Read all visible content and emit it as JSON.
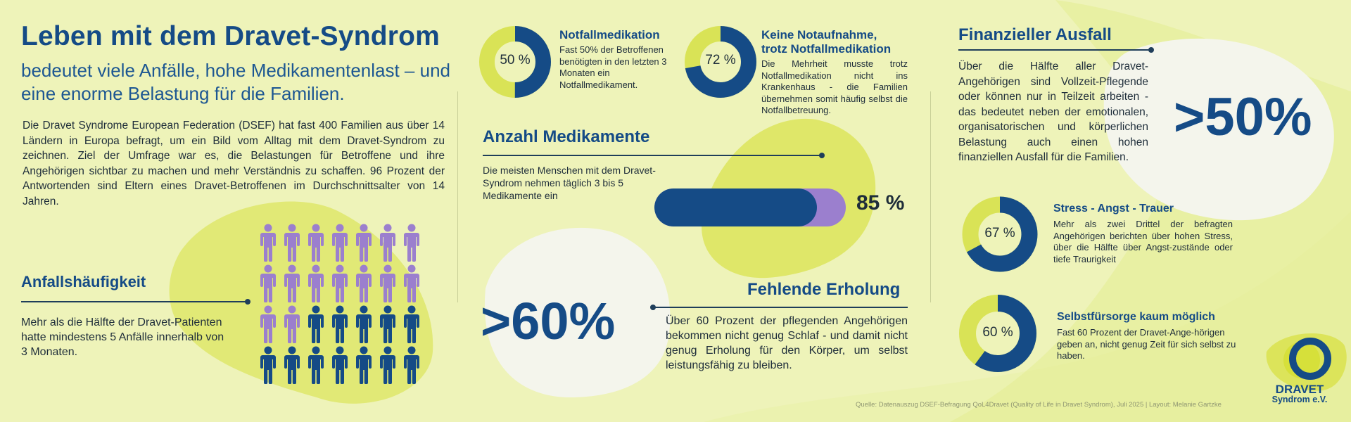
{
  "header": {
    "title": "Leben mit dem Dravet-Syndrom",
    "subtitle": "bedeutet viele Anfälle, hohe Medikamentenlast – und eine enorme Belastung für die Familien.",
    "intro": "Die Dravet Syndrome European Federation (DSEF) hat fast 400 Familien aus über 14 Ländern in Europa befragt, um ein Bild vom Alltag mit dem Dravet-Syndrom zu zeichnen. Ziel der Umfrage war es, die Belastungen für Betroffene und ihre Angehörigen sichtbar zu machen und mehr Verständnis zu schaffen. 96 Prozent der Antwortenden sind Eltern eines Dravet-Betroffenen im Durchschnittsalter von 14 Jahren."
  },
  "seizures": {
    "heading": "Anfallshäufigkeit",
    "text": "Mehr als die Hälfte der Dravet-Patienten hatte mindestens 5 Anfälle innerhalb von 3 Monaten.",
    "pictogram": {
      "total": 28,
      "highlighted": 16,
      "highlight_color": "#9b7fce",
      "base_color": "#154b86"
    }
  },
  "emergency_medication": {
    "percent": 50,
    "label": "50 %",
    "heading": "Notfallmedikation",
    "text": "Fast 50% der Betroffenen benötigten in den letzten 3 Monaten ein Notfallmedikament."
  },
  "no_emergency_admission": {
    "percent": 72,
    "label": "72 %",
    "heading_line1": "Keine Notaufnahme,",
    "heading_line2": "trotz Notfallmedikation",
    "text": "Die Mehrheit musste trotz Notfallmedikation nicht ins Krankenhaus - die Familien übernehmen somit häufig selbst die Notfallbetreuung."
  },
  "medications": {
    "heading": "Anzahl Medikamente",
    "text": "Die meisten Menschen mit dem Dravet-Syndrom nehmen täglich 3 bis 5 Medikamente ein",
    "percent": 85,
    "label": "85 %"
  },
  "recovery": {
    "big": ">60%",
    "heading": "Fehlende Erholung",
    "text": "Über 60 Prozent der pflegenden Angehörigen bekommen nicht genug Schlaf - und damit nicht genug Erholung für den Körper, um selbst leistungsfähig zu bleiben."
  },
  "financial": {
    "heading": "Finanzieller Ausfall",
    "text": "Über die Hälfte aller Dravet-Angehörigen sind Vollzeit-Pflegende oder können nur in Teilzeit arbeiten - das bedeutet neben der emotionalen, organisatorischen und körperlichen Belastung auch einen hohen finanziellen Ausfall für die Familien.",
    "big": ">50%"
  },
  "stress": {
    "percent": 67,
    "label": "67 %",
    "heading": "Stress - Angst - Trauer",
    "text": "Mehr als zwei Drittel der befragten Angehörigen berichten über hohen Stress, über die Hälfte über Angst-zustände oder tiefe Traurigkeit"
  },
  "selfcare": {
    "percent": 60,
    "label": "60 %",
    "heading": "Selbstfürsorge kaum möglich",
    "text": "Fast 60 Prozent der Dravet-Ange-hörigen geben an, nicht genug Zeit für sich selbst zu haben."
  },
  "footer": {
    "source": "Quelle:  Datenauszug DSEF-Befragung QoL4Dravet (Quality of Life in Dravet Syndrom), Juli 2025 | Layout: Melanie Gartzke",
    "logo_line1": "DRAVET",
    "logo_line2": "Syndrom e.V."
  },
  "colors": {
    "background": "#eef3b9",
    "accent_blue": "#154b86",
    "lime": "#d9e356",
    "purple": "#9b7fce",
    "blob_white": "#f3f4ea"
  }
}
